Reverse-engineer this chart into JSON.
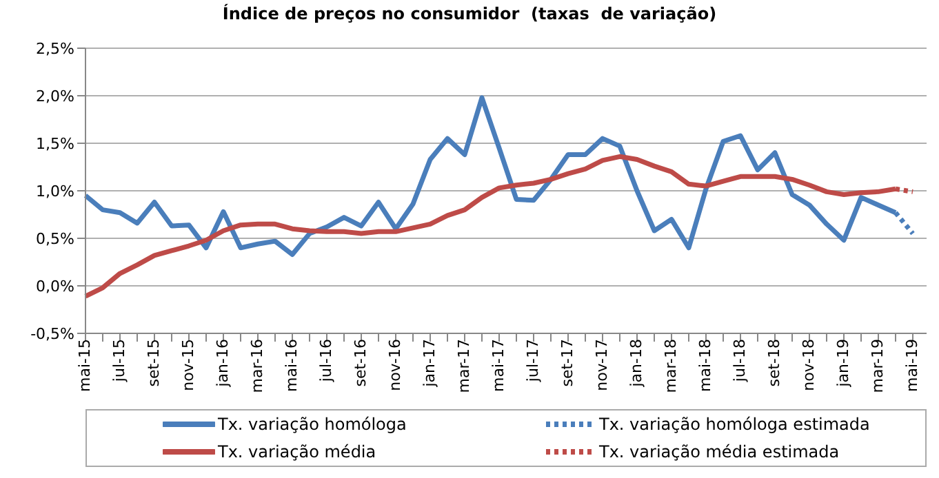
{
  "chart_data": {
    "type": "line",
    "title": "Índice de preços no consumidor  (taxas  de variação)",
    "categories": [
      "mai-15",
      null,
      "jul-15",
      null,
      "set-15",
      null,
      "nov-15",
      null,
      "jan-16",
      null,
      "mar-16",
      null,
      "mai-16",
      null,
      "jul-16",
      null,
      "set-16",
      null,
      "nov-16",
      null,
      "jan-17",
      null,
      "mar-17",
      null,
      "mai-17",
      null,
      "jul-17",
      null,
      "set-17",
      null,
      "nov-17",
      null,
      "jan-18",
      null,
      "mar-18",
      null,
      "mai-18",
      null,
      "jul-18",
      null,
      "set-18",
      null,
      "nov-18",
      null,
      "jan-19",
      null,
      "mar-19",
      null,
      "mai-19"
    ],
    "series": [
      {
        "name": "Tx. variação homóloga",
        "color": "#4a7ebb",
        "line_style": "solid",
        "values": [
          0.95,
          0.8,
          0.77,
          0.66,
          0.88,
          0.63,
          0.64,
          0.4,
          0.78,
          0.4,
          0.44,
          0.47,
          0.33,
          0.55,
          0.62,
          0.72,
          0.63,
          0.88,
          0.6,
          0.86,
          1.33,
          1.55,
          1.38,
          1.98,
          1.45,
          0.91,
          0.9,
          1.12,
          1.38,
          1.38,
          1.55,
          1.47,
          1.0,
          0.58,
          0.7,
          0.4,
          1.02,
          1.52,
          1.58,
          1.22,
          1.4,
          0.96,
          0.85,
          0.65,
          0.48,
          0.93,
          0.85,
          0.77,
          null
        ]
      },
      {
        "name": "Tx. variação média",
        "color": "#be4b48",
        "line_style": "solid",
        "values": [
          -0.11,
          -0.02,
          0.13,
          0.22,
          0.32,
          0.37,
          0.42,
          0.48,
          0.58,
          0.64,
          0.65,
          0.65,
          0.6,
          0.58,
          0.57,
          0.57,
          0.55,
          0.57,
          0.57,
          0.61,
          0.65,
          0.74,
          0.8,
          0.93,
          1.03,
          1.06,
          1.08,
          1.12,
          1.18,
          1.23,
          1.32,
          1.36,
          1.33,
          1.26,
          1.2,
          1.07,
          1.05,
          1.1,
          1.15,
          1.15,
          1.15,
          1.12,
          1.06,
          0.99,
          0.96,
          0.98,
          0.99,
          1.02,
          null
        ]
      },
      {
        "name": "Tx. variação homóloga estimada",
        "color": "#4a7ebb",
        "line_style": "dotted",
        "values": [
          null,
          null,
          null,
          null,
          null,
          null,
          null,
          null,
          null,
          null,
          null,
          null,
          null,
          null,
          null,
          null,
          null,
          null,
          null,
          null,
          null,
          null,
          null,
          null,
          null,
          null,
          null,
          null,
          null,
          null,
          null,
          null,
          null,
          null,
          null,
          null,
          null,
          null,
          null,
          null,
          null,
          null,
          null,
          null,
          null,
          null,
          null,
          0.77,
          0.55
        ]
      },
      {
        "name": "Tx. variação média  estimada",
        "color": "#be4b48",
        "line_style": "dotted",
        "values": [
          null,
          null,
          null,
          null,
          null,
          null,
          null,
          null,
          null,
          null,
          null,
          null,
          null,
          null,
          null,
          null,
          null,
          null,
          null,
          null,
          null,
          null,
          null,
          null,
          null,
          null,
          null,
          null,
          null,
          null,
          null,
          null,
          null,
          null,
          null,
          null,
          null,
          null,
          null,
          null,
          null,
          null,
          null,
          null,
          null,
          null,
          null,
          1.02,
          0.99
        ]
      }
    ],
    "ylim": [
      -0.5,
      2.5
    ],
    "yticks": [
      {
        "value": -0.5,
        "label": "-0,5%"
      },
      {
        "value": 0,
        "label": "0,0%"
      },
      {
        "value": 0.5,
        "label": "0,5%"
      },
      {
        "value": 1,
        "label": "1,0%"
      },
      {
        "value": 1.5,
        "label": "1,5%"
      },
      {
        "value": 2,
        "label": "2,0%"
      },
      {
        "value": 2.5,
        "label": "2,5%"
      }
    ],
    "grid": "y",
    "legend": "bottom",
    "marker": "none"
  }
}
